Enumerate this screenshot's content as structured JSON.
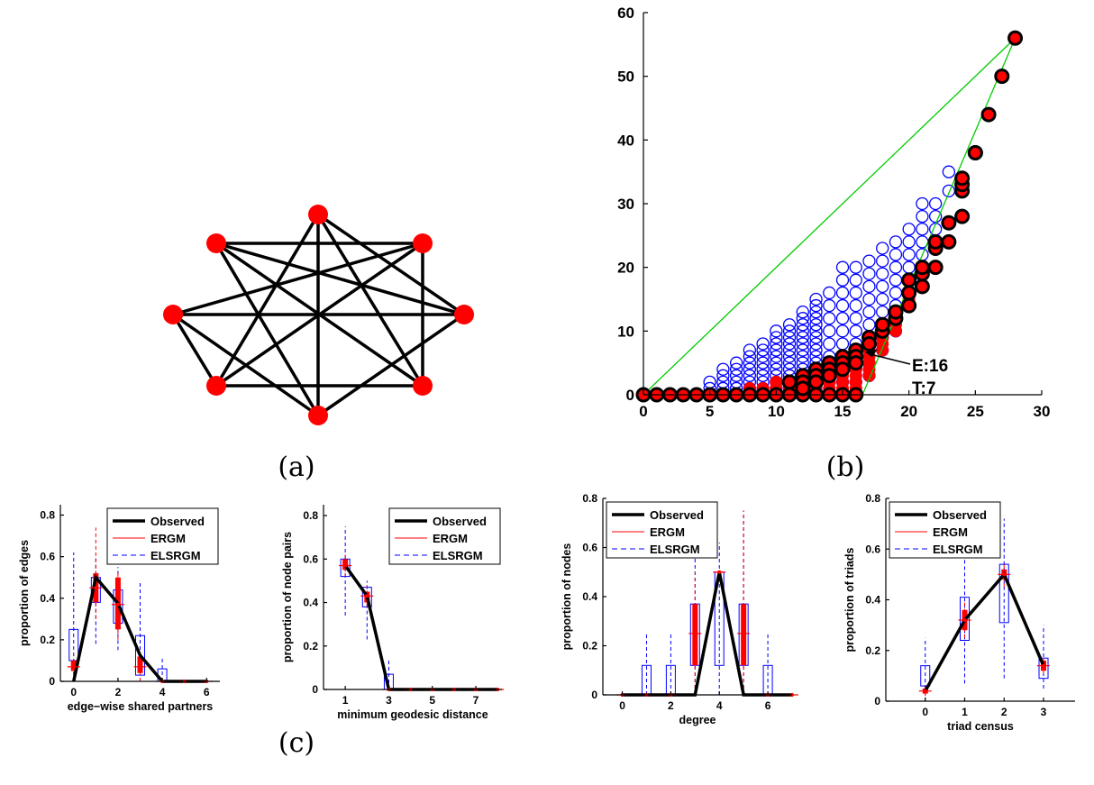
{
  "panel_labels": {
    "a": "(a)",
    "b": "(b)",
    "c": "(c)"
  },
  "colors": {
    "observed": "#000000",
    "ergm": "#ff0000",
    "elsrgm": "#0000ff",
    "hull": "#00cc00",
    "node": "#ff0000"
  },
  "chart_data": [
    {
      "id": "network",
      "type": "network",
      "nodes": 8,
      "edges": 16
    },
    {
      "id": "edge-triangle",
      "type": "scatter",
      "xlim": [
        0,
        30
      ],
      "ylim": [
        0,
        60
      ],
      "xticks": [
        0,
        5,
        10,
        15,
        20,
        25,
        30
      ],
      "yticks": [
        0,
        10,
        20,
        30,
        40,
        50,
        60
      ],
      "annotation": [
        "E:16",
        "T:7"
      ],
      "annotation_point": [
        16,
        7
      ],
      "hull": [
        [
          0,
          0
        ],
        [
          16.5,
          0
        ],
        [
          28,
          56
        ],
        [
          0,
          0
        ]
      ],
      "lower_bound": [
        [
          16,
          0
        ],
        [
          16,
          1
        ],
        [
          17,
          3
        ],
        [
          17,
          5
        ],
        [
          18,
          7
        ],
        [
          18,
          8
        ],
        [
          19,
          10
        ],
        [
          19,
          12
        ],
        [
          20,
          14
        ],
        [
          20,
          17
        ],
        [
          21,
          20
        ],
        [
          21,
          23
        ],
        [
          22,
          26
        ],
        [
          22,
          29
        ],
        [
          23,
          32
        ],
        [
          23,
          35
        ],
        [
          24,
          38
        ],
        [
          24,
          42
        ],
        [
          25,
          45
        ],
        [
          26,
          48
        ],
        [
          27,
          52
        ],
        [
          28,
          56
        ]
      ],
      "max_per_x": [
        0,
        0,
        0,
        0,
        0,
        2,
        4,
        5,
        7,
        8,
        10,
        11,
        13,
        15,
        16,
        20,
        20,
        21,
        23,
        25,
        26,
        30,
        30,
        35,
        36,
        38,
        41,
        45,
        56
      ],
      "red_top_per_x": [
        0,
        0,
        0,
        0,
        0,
        0,
        0,
        0,
        1,
        1,
        2,
        2,
        3,
        4,
        5,
        6,
        7,
        8,
        10,
        13,
        15,
        17,
        20,
        24,
        28,
        33,
        38,
        44,
        56
      ],
      "observed_top_per_x": [
        0,
        0,
        0,
        0,
        0,
        0,
        0,
        0,
        0,
        0,
        0,
        2,
        3,
        4,
        5,
        6,
        7,
        9,
        10,
        12,
        14,
        17,
        20,
        24,
        28,
        38,
        44,
        50,
        56
      ]
    },
    {
      "id": "edge-wise-shared-partners",
      "type": "line",
      "xlabel": "edge−wise shared partners",
      "ylabel": "proportion of edges",
      "xlim": [
        -0.6,
        6.6
      ],
      "ylim": [
        0,
        0.85
      ],
      "xticks": [
        0,
        2,
        4,
        6
      ],
      "yticks": [
        0,
        0.2,
        0.4,
        0.6,
        0.8
      ],
      "x": [
        0,
        1,
        2,
        3,
        4,
        5,
        6
      ],
      "series": [
        {
          "name": "Observed",
          "values": [
            0.0,
            0.5,
            0.375,
            0.125,
            0.0,
            0.0,
            0.0
          ]
        },
        {
          "name": "ERGM",
          "values": [
            0.07,
            0.45,
            0.37,
            0.07,
            0.0,
            0.0,
            0.0
          ]
        },
        {
          "name": "ELSRGM",
          "values": [
            0.12,
            0.44,
            0.34,
            0.08,
            0.02,
            0.0,
            0.0
          ]
        }
      ],
      "legend": [
        "Observed",
        "ERGM",
        "ELSRGM"
      ],
      "legend_position": "top-right"
    },
    {
      "id": "minimum-geodesic-distance",
      "type": "line",
      "xlabel": "minimum geodesic distance",
      "ylabel": "proportion of node pairs",
      "xlim": [
        0,
        8.2
      ],
      "ylim": [
        0,
        0.85
      ],
      "xticks": [
        1,
        3,
        5,
        7
      ],
      "yticks": [
        0,
        0.2,
        0.4,
        0.6,
        0.8
      ],
      "x": [
        1,
        2,
        3,
        4,
        5,
        6,
        7,
        8
      ],
      "series": [
        {
          "name": "Observed",
          "values": [
            0.57,
            0.43,
            0.0,
            0.0,
            0.0,
            0.0,
            0.0,
            0.0
          ]
        },
        {
          "name": "ERGM",
          "values": [
            0.57,
            0.43,
            0.0,
            0.0,
            0.0,
            0.0,
            0.0,
            0.0
          ]
        },
        {
          "name": "ELSRGM",
          "values": [
            0.56,
            0.42,
            0.02,
            0.0,
            0.0,
            0.0,
            0.0,
            0.0
          ]
        }
      ],
      "legend": [
        "Observed",
        "ERGM",
        "ELSRGM"
      ],
      "legend_position": "top-right"
    },
    {
      "id": "degree",
      "type": "line",
      "xlabel": "degree",
      "ylabel": "proportion of nodes",
      "xlim": [
        -0.8,
        7
      ],
      "ylim": [
        0,
        0.8
      ],
      "xticks": [
        0,
        2,
        4,
        6
      ],
      "yticks": [
        0,
        0.2,
        0.4,
        0.6,
        0.8
      ],
      "x": [
        0,
        1,
        2,
        3,
        4,
        5,
        6,
        7
      ],
      "series": [
        {
          "name": "Observed",
          "values": [
            0.0,
            0.0,
            0.0,
            0.0,
            0.5,
            0.0,
            0.0,
            0.0
          ]
        },
        {
          "name": "ERGM",
          "values": [
            0.0,
            0.0,
            0.0,
            0.25,
            0.5,
            0.25,
            0.0,
            0.0
          ]
        },
        {
          "name": "ELSRGM",
          "values": [
            0.0,
            0.03,
            0.03,
            0.25,
            0.25,
            0.25,
            0.03,
            0.0
          ]
        }
      ],
      "legend": [
        "Observed",
        "ERGM",
        "ELSRGM"
      ],
      "legend_position": "top-left"
    },
    {
      "id": "triad-census",
      "type": "line",
      "xlabel": "triad census",
      "ylabel": "proportion of triads",
      "xlim": [
        -1,
        3.8
      ],
      "ylim": [
        0,
        0.8
      ],
      "xticks": [
        0,
        1,
        2,
        3
      ],
      "yticks": [
        0,
        0.2,
        0.4,
        0.6,
        0.8
      ],
      "x": [
        0,
        1,
        2,
        3
      ],
      "series": [
        {
          "name": "Observed",
          "values": [
            0.04,
            0.32,
            0.5,
            0.14
          ]
        },
        {
          "name": "ERGM",
          "values": [
            0.04,
            0.32,
            0.5,
            0.14
          ]
        },
        {
          "name": "ELSRGM",
          "values": [
            0.1,
            0.33,
            0.43,
            0.13
          ]
        }
      ],
      "legend": [
        "Observed",
        "ERGM",
        "ELSRGM"
      ],
      "legend_position": "top-left"
    }
  ]
}
